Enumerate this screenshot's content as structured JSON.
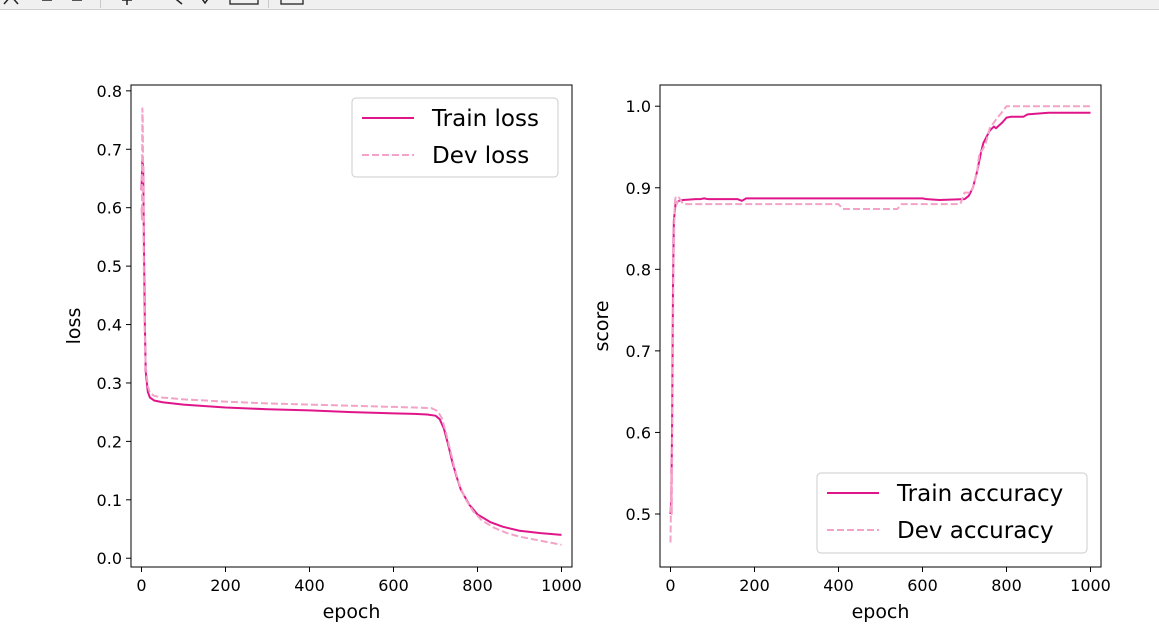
{
  "toolbar": {
    "icons": [
      "home-icon",
      "back-icon",
      "forward-icon",
      "pan-icon",
      "zoom-icon",
      "configure-icon",
      "edit-axes-icon",
      "save-icon"
    ]
  },
  "colors": {
    "train": "#e0158a",
    "dev": "#f3a3c7",
    "axis": "#000000"
  },
  "chart_data": [
    {
      "type": "line",
      "xlabel": "epoch",
      "ylabel": "loss",
      "xlim": [
        -25,
        1025
      ],
      "ylim": [
        -0.015,
        0.81
      ],
      "xticks": [
        0,
        200,
        400,
        600,
        800,
        1000
      ],
      "yticks": [
        0.0,
        0.1,
        0.2,
        0.3,
        0.4,
        0.5,
        0.6,
        0.7,
        0.8
      ],
      "ytick_labels": [
        "0.0",
        "0.1",
        "0.2",
        "0.3",
        "0.4",
        "0.5",
        "0.6",
        "0.7",
        "0.8"
      ],
      "legend_position": "upper right",
      "grid": false,
      "series": [
        {
          "name": "Train loss",
          "style": "solid",
          "color": "#e0158a",
          "x": [
            0,
            2,
            4,
            6,
            8,
            10,
            15,
            20,
            30,
            50,
            100,
            200,
            300,
            400,
            500,
            600,
            650,
            680,
            700,
            710,
            720,
            730,
            740,
            750,
            760,
            780,
            800,
            830,
            860,
            900,
            950,
            1000
          ],
          "y": [
            0.63,
            0.68,
            0.67,
            0.52,
            0.4,
            0.32,
            0.285,
            0.275,
            0.27,
            0.267,
            0.263,
            0.258,
            0.255,
            0.253,
            0.25,
            0.248,
            0.247,
            0.246,
            0.244,
            0.238,
            0.222,
            0.195,
            0.165,
            0.14,
            0.118,
            0.092,
            0.075,
            0.062,
            0.054,
            0.047,
            0.043,
            0.04
          ]
        },
        {
          "name": "Dev loss",
          "style": "dashed",
          "color": "#f3a3c7",
          "x": [
            0,
            1,
            2,
            3,
            4,
            5,
            6,
            8,
            10,
            15,
            20,
            30,
            50,
            100,
            200,
            300,
            400,
            500,
            600,
            650,
            690,
            705,
            715,
            725,
            735,
            745,
            755,
            770,
            790,
            810,
            840,
            870,
            900,
            950,
            1000
          ],
          "y": [
            0.6,
            0.58,
            0.77,
            0.75,
            0.65,
            0.55,
            0.45,
            0.38,
            0.33,
            0.295,
            0.283,
            0.278,
            0.275,
            0.272,
            0.268,
            0.265,
            0.263,
            0.261,
            0.259,
            0.258,
            0.257,
            0.252,
            0.24,
            0.215,
            0.185,
            0.155,
            0.13,
            0.103,
            0.08,
            0.065,
            0.052,
            0.043,
            0.037,
            0.03,
            0.023
          ]
        }
      ]
    },
    {
      "type": "line",
      "xlabel": "epoch",
      "ylabel": "score",
      "xlim": [
        -25,
        1025
      ],
      "ylim": [
        0.435,
        1.026
      ],
      "xticks": [
        0,
        200,
        400,
        600,
        800,
        1000
      ],
      "yticks": [
        0.5,
        0.6,
        0.7,
        0.8,
        0.9,
        1.0
      ],
      "ytick_labels": [
        "0.5",
        "0.6",
        "0.7",
        "0.8",
        "0.9",
        "1.0"
      ],
      "legend_position": "lower right",
      "grid": false,
      "series": [
        {
          "name": "Train accuracy",
          "style": "solid",
          "color": "#e0158a",
          "x": [
            0,
            2,
            4,
            6,
            8,
            10,
            12,
            15,
            20,
            30,
            60,
            70,
            80,
            90,
            160,
            170,
            180,
            600,
            610,
            640,
            700,
            710,
            720,
            730,
            740,
            745,
            750,
            760,
            770,
            775,
            790,
            800,
            810,
            840,
            850,
            900,
            1000
          ],
          "y": [
            0.5,
            0.52,
            0.62,
            0.78,
            0.86,
            0.87,
            0.88,
            0.882,
            0.884,
            0.885,
            0.886,
            0.886,
            0.887,
            0.886,
            0.886,
            0.884,
            0.887,
            0.887,
            0.886,
            0.885,
            0.886,
            0.89,
            0.9,
            0.92,
            0.945,
            0.955,
            0.96,
            0.97,
            0.975,
            0.973,
            0.98,
            0.986,
            0.987,
            0.987,
            0.99,
            0.992,
            0.992
          ]
        },
        {
          "name": "Dev accuracy",
          "style": "dashed",
          "color": "#f3a3c7",
          "x": [
            0,
            2,
            3,
            5,
            7,
            10,
            12,
            15,
            20,
            30,
            400,
            410,
            540,
            550,
            690,
            700,
            715,
            720,
            730,
            735,
            750,
            760,
            770,
            780,
            790,
            800,
            1000
          ],
          "y": [
            0.465,
            0.55,
            0.5,
            0.65,
            0.8,
            0.88,
            0.888,
            0.88,
            0.888,
            0.88,
            0.88,
            0.874,
            0.874,
            0.88,
            0.88,
            0.894,
            0.894,
            0.9,
            0.92,
            0.94,
            0.953,
            0.973,
            0.98,
            0.987,
            0.993,
            1.0,
            1.0
          ]
        }
      ]
    }
  ]
}
